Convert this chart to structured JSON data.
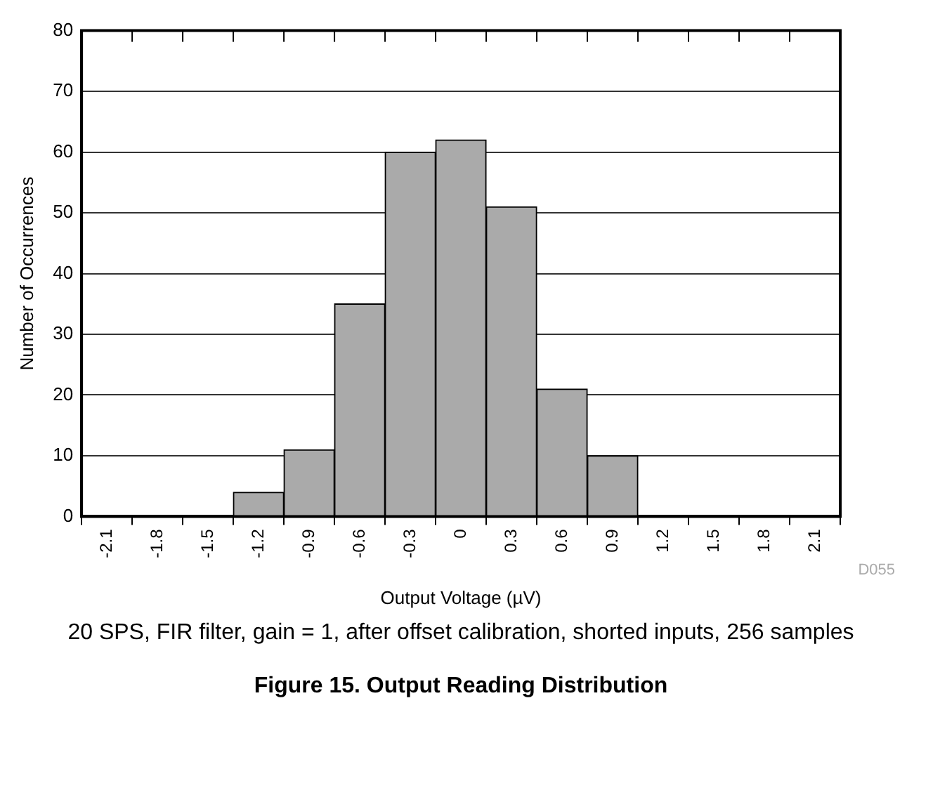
{
  "chart_data": {
    "type": "bar",
    "title": "Figure 15. Output Reading Distribution",
    "xlabel": "Output Voltage (µV)",
    "ylabel": "Number of Occurrences",
    "categories": [
      "-2.1",
      "-1.8",
      "-1.5",
      "-1.2",
      "-0.9",
      "-0.6",
      "-0.3",
      "0",
      "0.3",
      "0.6",
      "0.9",
      "1.2",
      "1.5",
      "1.8",
      "2.1"
    ],
    "values": [
      0,
      0,
      0,
      4,
      11,
      35,
      60,
      62,
      51,
      21,
      10,
      0,
      0,
      0,
      0
    ],
    "color": "#aaaaaa",
    "ylim": [
      0,
      80
    ],
    "yticks": [
      0,
      10,
      20,
      30,
      40,
      50,
      60,
      70,
      80
    ],
    "grid": "y",
    "annotations": [
      "D055",
      "20 SPS, FIR filter, gain = 1, after offset calibration, shorted inputs, 256 samples"
    ]
  }
}
